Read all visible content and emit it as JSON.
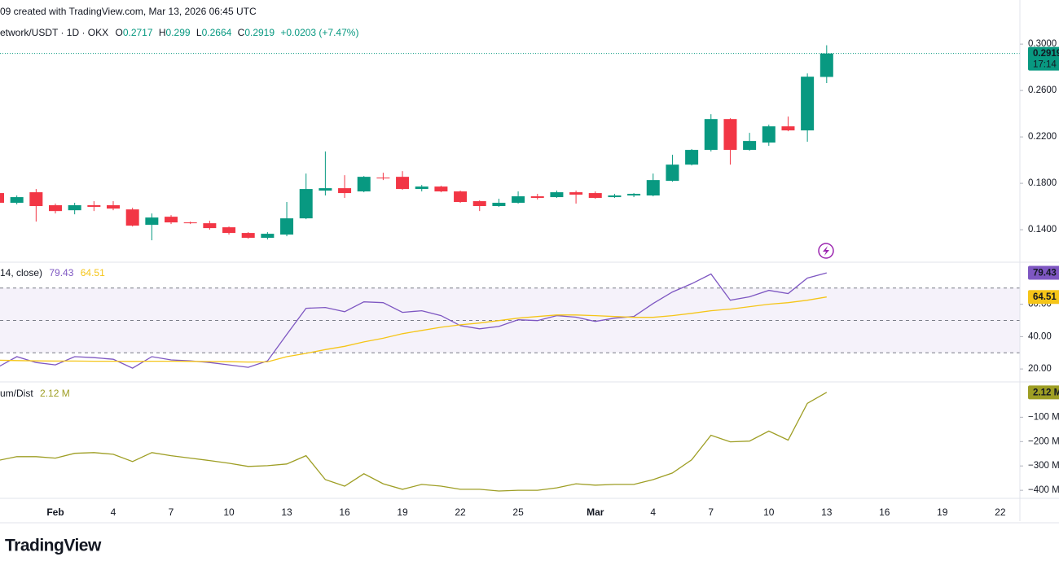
{
  "header": {
    "created": "09 created with TradingView.com, Mar 13, 2026 06:45 UTC",
    "ohlc_labels": [
      "O",
      "H",
      "L",
      "C"
    ],
    "change": "+0.0203 (+7.47%)",
    "countdown": "17:14"
  },
  "brand": "TradingView",
  "chart_data": [
    {
      "type": "candlestick",
      "title": "etwork/USDT · 1D · OKX",
      "categories": [
        null,
        null,
        null,
        "Feb",
        null,
        null,
        "4",
        null,
        null,
        "7",
        null,
        null,
        "10",
        null,
        null,
        "13",
        null,
        null,
        "16",
        null,
        null,
        "19",
        null,
        null,
        "22",
        null,
        null,
        "25",
        null,
        null,
        null,
        "Mar",
        null,
        null,
        "4",
        null,
        null,
        "7",
        null,
        null,
        "10",
        null,
        null,
        "13",
        null,
        null,
        "16",
        null,
        null,
        "19",
        null,
        null,
        "22"
      ],
      "open": [
        0.1716,
        0.1632,
        0.1723,
        0.1611,
        0.1568,
        0.1611,
        0.1611,
        0.1575,
        0.1442,
        0.1512,
        0.1463,
        0.1456,
        0.1421,
        0.1372,
        0.133,
        0.1358,
        0.1498,
        0.1737,
        0.1758,
        0.173,
        0.1849,
        0.1856,
        0.1751,
        0.1772,
        0.173,
        0.1646,
        0.1604,
        0.1632,
        0.1688,
        0.1681,
        0.1723,
        0.1716,
        0.1681,
        0.1695,
        0.1695,
        0.1821,
        0.1961,
        0.2088,
        0.2354,
        0.2088,
        0.2151,
        0.2291,
        0.2256,
        0.2717,
        null,
        null,
        null,
        null,
        null,
        null,
        null,
        null,
        null
      ],
      "high": [
        0.173,
        0.1695,
        0.1751,
        0.1625,
        0.1632,
        0.1646,
        0.1646,
        0.1589,
        0.154,
        0.1526,
        0.147,
        0.1477,
        0.1428,
        0.1379,
        0.1379,
        0.1639,
        0.1884,
        0.2074,
        0.187,
        0.1863,
        0.1891,
        0.1905,
        0.1786,
        0.1779,
        0.1737,
        0.1653,
        0.1667,
        0.173,
        0.1709,
        0.1737,
        0.1737,
        0.173,
        0.1709,
        0.1716,
        0.1884,
        0.2046,
        0.2095,
        0.2396,
        0.2361,
        0.2235,
        0.2305,
        0.2375,
        0.2747,
        0.299,
        null,
        null,
        null,
        null,
        null,
        null,
        null,
        null,
        null
      ],
      "low": [
        0.161,
        0.1618,
        0.147,
        0.154,
        0.1533,
        0.1561,
        0.1568,
        0.1428,
        0.1309,
        0.1449,
        0.1449,
        0.14,
        0.1358,
        0.1323,
        0.1316,
        0.1344,
        0.1491,
        0.1695,
        0.1674,
        0.1723,
        0.1828,
        0.1744,
        0.173,
        0.1723,
        0.1632,
        0.1561,
        0.1597,
        0.1625,
        0.166,
        0.1674,
        0.1625,
        0.1667,
        0.1674,
        0.1681,
        0.1688,
        0.1814,
        0.1954,
        0.2074,
        0.1961,
        0.2081,
        0.2123,
        0.2249,
        0.2158,
        0.2664,
        null,
        null,
        null,
        null,
        null,
        null,
        null,
        null,
        null
      ],
      "close": [
        0.1632,
        0.1681,
        0.1604,
        0.1561,
        0.1611,
        0.1597,
        0.1582,
        0.1435,
        0.1505,
        0.1463,
        0.1456,
        0.1414,
        0.1372,
        0.133,
        0.1365,
        0.1498,
        0.1751,
        0.1758,
        0.1716,
        0.1856,
        0.1842,
        0.1751,
        0.1772,
        0.173,
        0.1639,
        0.1604,
        0.1632,
        0.1688,
        0.1674,
        0.1723,
        0.1702,
        0.1674,
        0.1695,
        0.1709,
        0.1828,
        0.1961,
        0.2088,
        0.2354,
        0.2088,
        0.2165,
        0.2291,
        0.2256,
        0.2719,
        0.2919,
        null,
        null,
        null,
        null,
        null,
        null,
        null,
        null,
        null
      ],
      "up_color": "#089981",
      "down_color": "#f23645",
      "ylim": [
        0.112,
        0.338
      ],
      "yticks": [
        {
          "value": 0.3,
          "label": "0.3000"
        },
        {
          "value": 0.26,
          "label": "0.2600"
        },
        {
          "value": 0.22,
          "label": "0.2200"
        },
        {
          "value": 0.18,
          "label": "0.1800"
        },
        {
          "value": 0.14,
          "label": "0.1400"
        }
      ]
    },
    {
      "type": "line",
      "title": "14, close)",
      "series": [
        {
          "color": "#7e57c2",
          "values": [
            21,
            27.6,
            24,
            22.5,
            27.6,
            27,
            26,
            20.5,
            27.6,
            25.6,
            25,
            24,
            22.5,
            21,
            25,
            41.3,
            57.5,
            58,
            55.4,
            61.5,
            61,
            55,
            56,
            53,
            46.8,
            44.8,
            46.3,
            50.4,
            49.9,
            53,
            52,
            49.4,
            51.4,
            52.4,
            60.5,
            67.6,
            72.7,
            78.7,
            62.5,
            64.6,
            68.6,
            66.6,
            76.2,
            79.43,
            null,
            null,
            null,
            null,
            null,
            null,
            null,
            null,
            null
          ]
        },
        {
          "color": "#f5c518",
          "values": [
            25.4,
            25.2,
            25,
            24.9,
            24.9,
            24.8,
            24.8,
            24.7,
            24.8,
            24.8,
            24.7,
            24.6,
            24.5,
            24.3,
            24.4,
            27.6,
            29.6,
            32,
            34,
            36.7,
            39,
            41.8,
            43.8,
            45.8,
            47.3,
            48.4,
            49.9,
            51.4,
            52.4,
            53.4,
            53.4,
            53,
            52.4,
            51.9,
            51.9,
            53,
            54.4,
            56,
            57,
            58.5,
            60,
            61,
            62.5,
            64.51,
            null,
            null,
            null,
            null,
            null,
            null,
            null,
            null,
            null
          ]
        }
      ],
      "levels": [
        70,
        50,
        30
      ],
      "band_color": "#7e57c2",
      "ylim": [
        12,
        86
      ],
      "yticks": [
        {
          "value": 60,
          "label": "60.00"
        },
        {
          "value": 40,
          "label": "40.00"
        },
        {
          "value": 20,
          "label": "20.00"
        }
      ]
    },
    {
      "type": "line",
      "title": "um/Dist",
      "series": [
        {
          "color": "#9e9e24",
          "values": [
            -278,
            -262,
            -262,
            -268,
            -248,
            -245,
            -252,
            -282,
            -245,
            -258,
            -268,
            -278,
            -289,
            -302,
            -299,
            -292,
            -258,
            -356,
            -383,
            -332,
            -373,
            -396,
            -376,
            -383,
            -396,
            -396,
            -403,
            -400,
            -400,
            -390,
            -373,
            -379,
            -376,
            -376,
            -356,
            -329,
            -275,
            -174,
            -201,
            -198,
            -157,
            -194,
            -43,
            2.12,
            null,
            null,
            null,
            null,
            null,
            null,
            null,
            null,
            null
          ],
          "value_labels": [
            null,
            null,
            null,
            null,
            null,
            null,
            null,
            null,
            null,
            null,
            null,
            null,
            null,
            null,
            null,
            null,
            null,
            null,
            null,
            null,
            null,
            null,
            null,
            null,
            null,
            null,
            null,
            null,
            null,
            null,
            null,
            null,
            null,
            null,
            null,
            null,
            null,
            null,
            null,
            null,
            null,
            null,
            null,
            "2.12 M",
            null,
            null,
            null,
            null,
            null,
            null,
            null,
            null,
            null
          ]
        }
      ],
      "ylim": [
        -433,
        45
      ],
      "yticks": [
        {
          "value": -100,
          "label": "−100 M"
        },
        {
          "value": -200,
          "label": "−200 M"
        },
        {
          "value": -300,
          "label": "−300 M"
        },
        {
          "value": -400,
          "label": "−400 M"
        }
      ]
    }
  ]
}
